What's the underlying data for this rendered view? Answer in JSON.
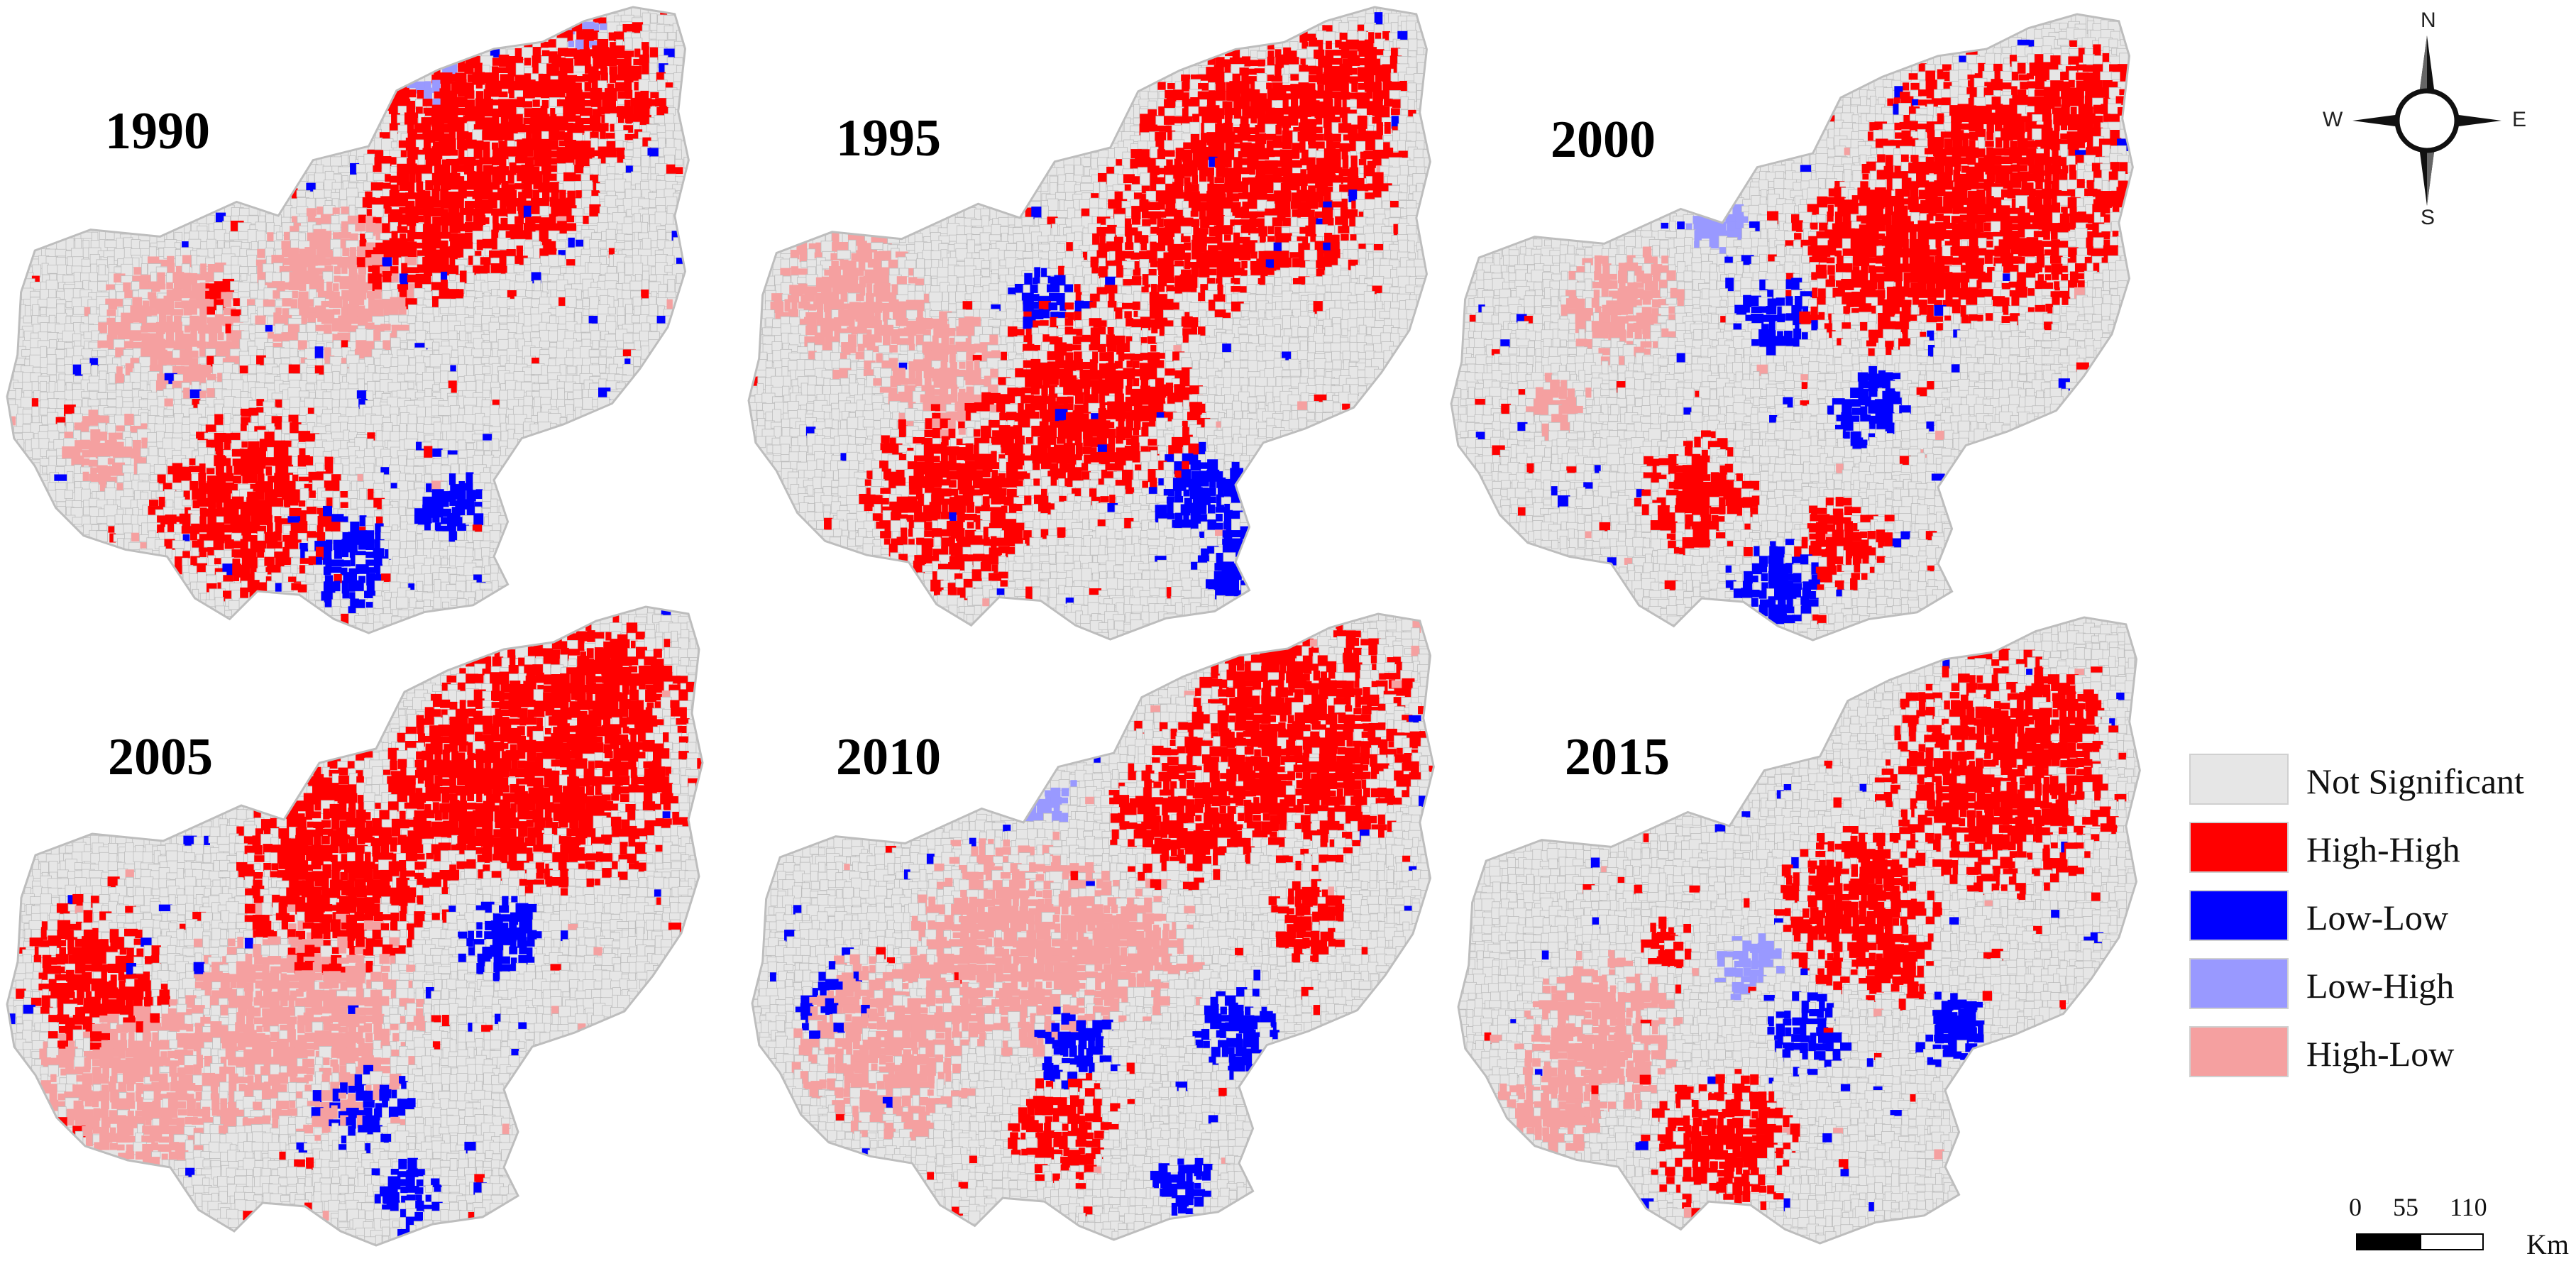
{
  "panels": [
    {
      "year": "1990"
    },
    {
      "year": "1995"
    },
    {
      "year": "2000"
    },
    {
      "year": "2005"
    },
    {
      "year": "2010"
    },
    {
      "year": "2015"
    }
  ],
  "colors": {
    "not_significant": "#e6e6e6",
    "high_high": "#ff0000",
    "low_low": "#0000ff",
    "low_high": "#9999ff",
    "high_low": "#f5a0a0",
    "boundary_mesh": "#bdbdbd"
  },
  "legend": {
    "items": [
      {
        "label": "Not Significant",
        "color": "#e6e6e6"
      },
      {
        "label": "High-High",
        "color": "#ff0000"
      },
      {
        "label": "Low-Low",
        "color": "#0000ff"
      },
      {
        "label": "Low-High",
        "color": "#9999ff"
      },
      {
        "label": "High-Low",
        "color": "#f5a0a0"
      }
    ]
  },
  "compass": {
    "north": "N",
    "south": "S",
    "east": "E",
    "west": "W"
  },
  "scalebar": {
    "ticks": [
      "0",
      "55",
      "110"
    ],
    "unit": "Km"
  }
}
